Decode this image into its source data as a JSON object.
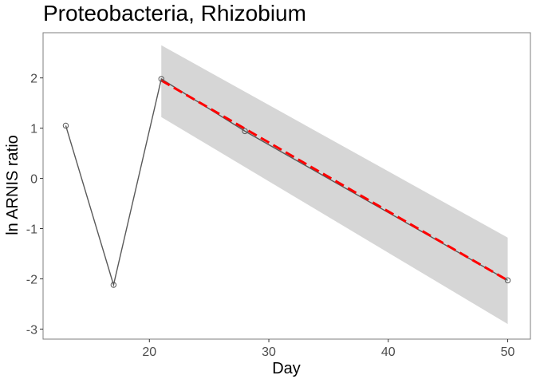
{
  "chart_data": {
    "type": "line",
    "title": "Proteobacteria, Rhizobium",
    "xlabel": "Day",
    "ylabel": "ln ARNIS ratio",
    "xlim": [
      11.1,
      51.9
    ],
    "ylim": [
      -3.2,
      2.9
    ],
    "x_ticks": [
      20,
      30,
      40,
      50
    ],
    "y_ticks": [
      -3,
      -2,
      -1,
      0,
      1,
      2
    ],
    "grid": false,
    "series": [
      {
        "kind": "observed",
        "x": [
          13,
          17,
          21,
          28,
          50
        ],
        "y": [
          1.05,
          -2.12,
          1.98,
          0.94,
          -2.03
        ],
        "color": "#595959",
        "marker": "open-circle"
      },
      {
        "kind": "fit",
        "x": [
          21,
          50
        ],
        "y": [
          1.95,
          -2.03
        ],
        "color": "#ff0000",
        "line_style": "dashed"
      }
    ],
    "confidence_band": {
      "x": [
        21,
        50
      ],
      "upper": [
        2.65,
        -1.18
      ],
      "lower": [
        1.22,
        -2.9
      ],
      "color": "#d6d6d6"
    }
  }
}
